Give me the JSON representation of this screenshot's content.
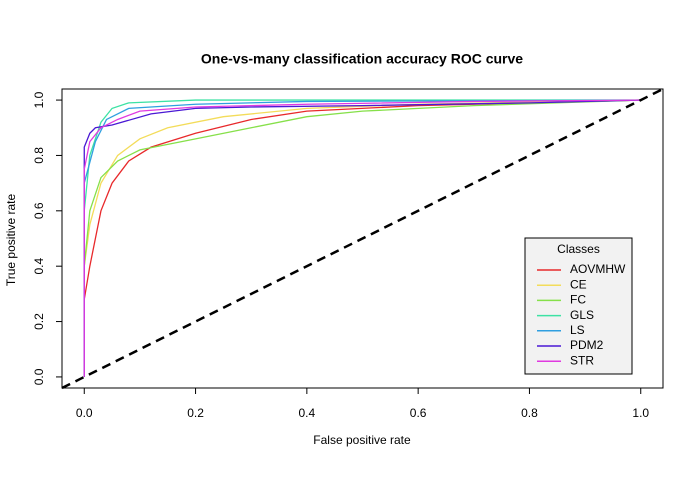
{
  "chart_data": {
    "type": "line",
    "title": "One-vs-many classification accuracy ROC curve",
    "x_label": "False positive rate",
    "y_label": "True positive rate",
    "legend_title": "Classes",
    "legend_position": "bottom-right",
    "xlim": [
      -0.04,
      1.04
    ],
    "ylim": [
      -0.04,
      1.04
    ],
    "xticks": [
      {
        "value": 0,
        "label": "0.0"
      },
      0.2,
      0.4,
      0.6,
      0.8,
      {
        "value": 1,
        "label": "1.0"
      }
    ],
    "yticks": [
      {
        "value": 0,
        "label": "0.0"
      },
      0.2,
      0.4,
      0.6,
      0.8,
      {
        "value": 1,
        "label": "1.0"
      }
    ],
    "series": [
      {
        "name": "AOVMHW",
        "color": "#e8292b",
        "x": [
          0,
          0,
          0.01,
          0.02,
          0.03,
          0.05,
          0.08,
          0.12,
          0.2,
          0.3,
          0.4,
          0.6,
          0.8,
          1
        ],
        "values": [
          0,
          0.28,
          0.4,
          0.5,
          0.6,
          0.7,
          0.78,
          0.83,
          0.88,
          0.93,
          0.96,
          0.98,
          0.99,
          1
        ]
      },
      {
        "name": "CE",
        "color": "#f3dc5a",
        "x": [
          0,
          0,
          0.01,
          0.03,
          0.06,
          0.1,
          0.15,
          0.25,
          0.4,
          0.6,
          1
        ],
        "values": [
          0,
          0.4,
          0.55,
          0.7,
          0.8,
          0.86,
          0.9,
          0.94,
          0.97,
          0.985,
          1
        ]
      },
      {
        "name": "FC",
        "color": "#86e04a",
        "x": [
          0,
          0,
          0.01,
          0.03,
          0.06,
          0.1,
          0.2,
          0.3,
          0.4,
          0.5,
          0.7,
          1
        ],
        "values": [
          0,
          0.4,
          0.6,
          0.72,
          0.78,
          0.82,
          0.86,
          0.9,
          0.94,
          0.96,
          0.98,
          1
        ]
      },
      {
        "name": "GLS",
        "color": "#3de2a4",
        "x": [
          0,
          0,
          0.01,
          0.03,
          0.05,
          0.08,
          0.2,
          1
        ],
        "values": [
          0,
          0.6,
          0.8,
          0.92,
          0.97,
          0.99,
          1,
          1
        ]
      },
      {
        "name": "LS",
        "color": "#2f9fe0",
        "x": [
          0,
          0,
          0.02,
          0.04,
          0.08,
          0.2,
          0.4,
          1
        ],
        "values": [
          0,
          0.7,
          0.85,
          0.93,
          0.97,
          0.985,
          0.995,
          1
        ]
      },
      {
        "name": "PDM2",
        "color": "#4a18d4",
        "x": [
          0,
          0,
          0.01,
          0.02,
          0.05,
          0.12,
          0.2,
          0.3,
          0.5,
          0.8,
          1
        ],
        "values": [
          0,
          0.83,
          0.88,
          0.9,
          0.91,
          0.95,
          0.97,
          0.975,
          0.98,
          0.99,
          1
        ]
      },
      {
        "name": "STR",
        "color": "#e03ae0",
        "x": [
          0,
          0,
          0.01,
          0.03,
          0.06,
          0.1,
          0.2,
          0.4,
          0.7,
          1
        ],
        "values": [
          0,
          0.75,
          0.85,
          0.9,
          0.93,
          0.96,
          0.975,
          0.985,
          0.995,
          1
        ]
      }
    ]
  }
}
